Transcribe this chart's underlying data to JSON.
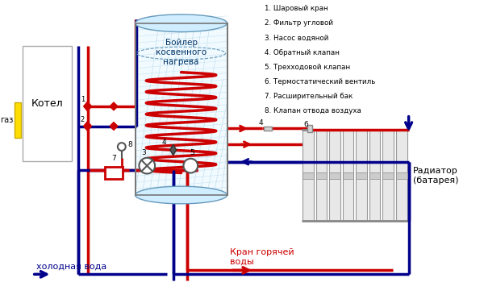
{
  "bg_color": "#ffffff",
  "red": "#cc0000",
  "blue": "#00008b",
  "gray": "#888888",
  "light_gray": "#d3d3d3",
  "yellow": "#ffdd00",
  "legend_items": [
    "1. Шаровый кран",
    "2. Фильтр угловой",
    "3. Насос водяной",
    "4. Обратный клапан",
    "5. Трехходовой клапан",
    "6. Термостатический вентиль",
    "7. Расширительный бак",
    "8. Клапан отвода воздуха"
  ],
  "boiler_label": "Бойлер\nкосвенного\nнагрева",
  "kotel_label": "Котел",
  "gaz_label": "газ",
  "cold_water_label": "холодная вода",
  "hot_water_label": "Кран горячей\nводы",
  "radiator_label": "Радиатор\n(батарея)"
}
